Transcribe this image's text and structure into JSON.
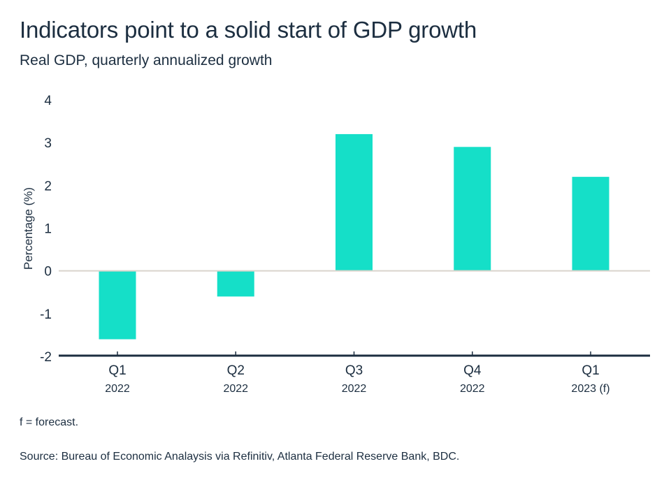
{
  "header": {
    "title": "Indicators point to a solid start of GDP growth",
    "subtitle": "Real GDP, quarterly annualized growth"
  },
  "footer": {
    "note": "f = forecast.",
    "source": "Source: Bureau of Economic Analaysis via Refinitiv, Atlanta Federal Reserve Bank, BDC."
  },
  "colors": {
    "bar": "#15dfc8",
    "text": "#1c2e40",
    "zero_line": "#d9d4cc",
    "axis": "#1c2e40"
  },
  "chart_data": {
    "type": "bar",
    "title": "Indicators point to a solid start of GDP growth",
    "subtitle": "Real GDP, quarterly annualized growth",
    "xlabel": "",
    "ylabel": "Percentage (%)",
    "categories": [
      "Q1 2022",
      "Q2 2022",
      "Q3 2022",
      "Q4 2022",
      "Q1 2023 (f)"
    ],
    "category_lines": [
      [
        "Q1",
        "2022"
      ],
      [
        "Q2",
        "2022"
      ],
      [
        "Q3",
        "2022"
      ],
      [
        "Q4",
        "2022"
      ],
      [
        "Q1",
        "2023 (f)"
      ]
    ],
    "values": [
      -1.6,
      -0.6,
      3.2,
      2.9,
      2.2
    ],
    "ylim": [
      -2,
      4
    ],
    "yticks": [
      4,
      3,
      2,
      1,
      0,
      -1,
      -2
    ],
    "ytick_labels": [
      "4",
      "3",
      "2",
      "1",
      "0",
      "-1",
      "-2"
    ],
    "grid": false,
    "legend": "none"
  }
}
